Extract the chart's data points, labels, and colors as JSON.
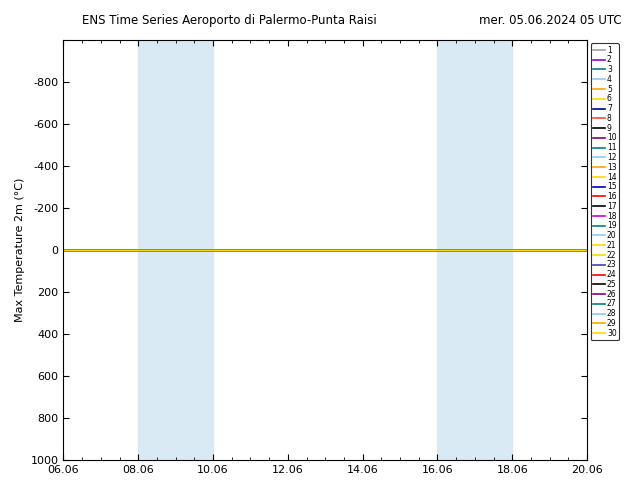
{
  "title_left": "ENS Time Series Aeroporto di Palermo-Punta Raisi",
  "title_right": "mer. 05.06.2024 05 UTC",
  "ylabel": "Max Temperature 2m (°C)",
  "ylim_bottom": 1000,
  "ylim_top": -1000,
  "yticks": [
    -800,
    -600,
    -400,
    -200,
    0,
    200,
    400,
    600,
    800,
    1000
  ],
  "xtick_labels": [
    "06.06",
    "08.06",
    "10.06",
    "12.06",
    "14.06",
    "16.06",
    "18.06",
    "20.06"
  ],
  "xtick_positions": [
    0,
    2,
    4,
    6,
    8,
    10,
    12,
    14
  ],
  "shade_regions": [
    [
      2.0,
      2.67
    ],
    [
      2.67,
      4.0
    ],
    [
      10.0,
      10.67
    ],
    [
      10.67,
      12.0
    ]
  ],
  "shade_color": "#daeaf5",
  "num_members": 30,
  "member_colors": [
    "#a0a0a0",
    "#9400d3",
    "#008080",
    "#87ceeb",
    "#ffa500",
    "#ffd700",
    "#00008b",
    "#ff4444",
    "#000000",
    "#800080",
    "#008080",
    "#87ceeb",
    "#ffa500",
    "#ffd700",
    "#0000cd",
    "#ff0000",
    "#000000",
    "#cc00cc",
    "#008080",
    "#87ceeb",
    "#ffd700",
    "#ffd700",
    "#4040c0",
    "#ff0000",
    "#000000",
    "#800080",
    "#008080",
    "#87ceeb",
    "#ffa500",
    "#ffd700"
  ],
  "yellow_member_index": 21,
  "line_value": 0,
  "background_color": "#ffffff",
  "plot_bg_color": "#ffffff",
  "x_start": 0,
  "x_end": 14
}
